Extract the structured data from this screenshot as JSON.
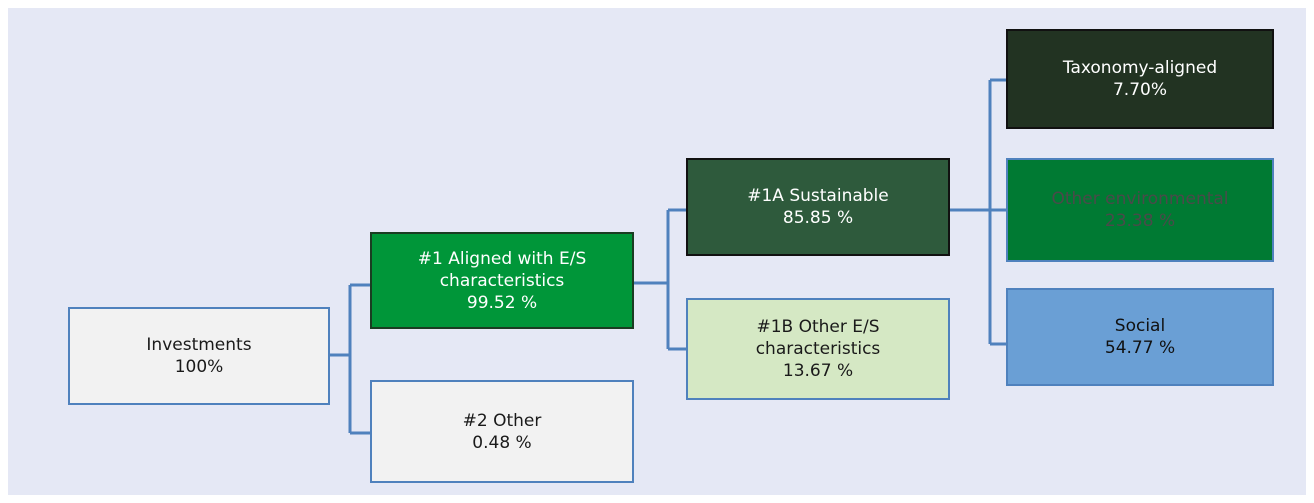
{
  "colors": {
    "background": "#e5e8f5",
    "connector": "#4f81bd",
    "aligned": "#009639",
    "sustainable": "#2e5a3c",
    "other_es": "#d5e8c4",
    "taxonomy": "#223322",
    "environmental": "#007a33",
    "social": "#6a9fd5"
  },
  "nodes": {
    "investments": {
      "label": "Investments",
      "value": "100%"
    },
    "aligned": {
      "label_line1": "#1 Aligned with E/S",
      "label_line2": "characteristics",
      "value": "99.52 %"
    },
    "other": {
      "label": "#2 Other",
      "value": "0.48 %"
    },
    "sustainable": {
      "label": "#1A Sustainable",
      "value": "85.85 %"
    },
    "other_es": {
      "label_line1": "#1B Other E/S",
      "label_line2": "characteristics",
      "value": "13.67 %"
    },
    "taxonomy": {
      "label": "Taxonomy-aligned",
      "value": "7.70%"
    },
    "environmental": {
      "label": "Other environmental",
      "value": "23.38 %"
    },
    "social": {
      "label": "Social",
      "value": "54.77 %"
    }
  }
}
